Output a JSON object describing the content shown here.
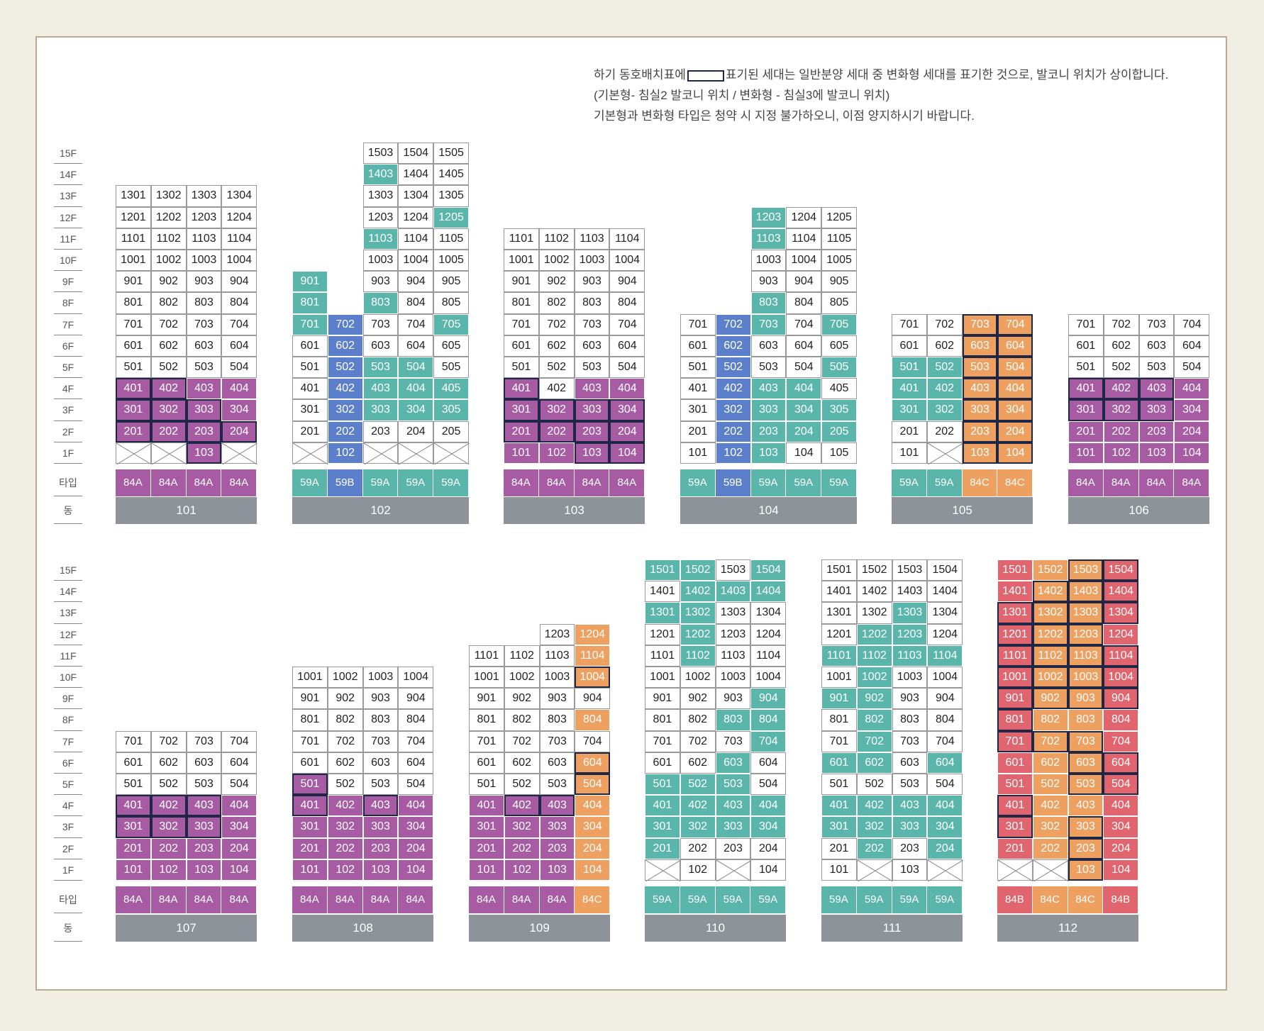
{
  "legend": {
    "line1_pre": "하기 동호배치표에",
    "line1_post": "표기된 세대는 일반분양 세대 중 변화형 세대를 표기한 것으로, 발코니 위치가 상이합니다.",
    "line2": "(기본형- 침실2 발코니 위치 / 변화형 - 침실3에 발코니 위치)",
    "line3": "기본형과 변화형 타입은 청약 시 지정 불가하오니, 이점 양지하시기 바랍니다."
  },
  "row_labels": {
    "type": "타입",
    "building": "동"
  },
  "colors": {
    "84A": "#a65ba3",
    "59A": "#5ab5aa",
    "59B": "#5b7fcb",
    "84C": "#eea061",
    "84B": "#e0656f",
    "building": "#8d9398",
    "variant_border": "#1f2747"
  },
  "buildings": [
    {
      "name": "101",
      "top_floor": 13,
      "units": 4,
      "types": [
        "84A",
        "84A",
        "84A",
        "84A"
      ],
      "colored": {
        "84A": [
          "201",
          "202",
          "203",
          "204",
          "301",
          "302",
          "303",
          "304",
          "401",
          "402",
          "403",
          "404",
          "103"
        ]
      },
      "variant": [
        "201",
        "202",
        "203",
        "204",
        "301",
        "302",
        "303",
        "401",
        "402",
        "103"
      ],
      "empty": [
        "101",
        "102",
        "104"
      ],
      "missing": []
    },
    {
      "name": "102",
      "top_floor": 15,
      "units": 5,
      "types": [
        "59A",
        "59B",
        "59A",
        "59A",
        "59A"
      ],
      "colored": {
        "59A": [
          "701",
          "801",
          "901",
          "503",
          "504",
          "403",
          "404",
          "405",
          "303",
          "304",
          "305",
          "705",
          "803",
          "1103",
          "1205",
          "1403"
        ],
        "59B": [
          "702",
          "602",
          "502",
          "402",
          "302",
          "202",
          "102"
        ]
      },
      "variant": [],
      "empty": [
        "101",
        "103",
        "104",
        "105"
      ],
      "missing": [
        "802",
        "902",
        "1001",
        "1002",
        "1101",
        "1102",
        "1201",
        "1202",
        "1301",
        "1302",
        "1401",
        "1402",
        "1501",
        "1502"
      ]
    },
    {
      "name": "103",
      "top_floor": 11,
      "units": 4,
      "types": [
        "84A",
        "84A",
        "84A",
        "84A"
      ],
      "colored": {
        "84A": [
          "101",
          "102",
          "103",
          "104",
          "201",
          "202",
          "203",
          "204",
          "301",
          "302",
          "303",
          "304",
          "401",
          "403",
          "404"
        ]
      },
      "variant": [
        "103",
        "104",
        "201",
        "202",
        "203",
        "204",
        "301",
        "302",
        "303",
        "304",
        "401"
      ],
      "empty": [],
      "missing": []
    },
    {
      "name": "104",
      "top_floor": 12,
      "units": 5,
      "types": [
        "59A",
        "59B",
        "59A",
        "59A",
        "59A"
      ],
      "colored": {
        "59A": [
          "103",
          "203",
          "204",
          "205",
          "303",
          "304",
          "305",
          "403",
          "404",
          "505",
          "703",
          "705",
          "803",
          "1103",
          "1203"
        ],
        "59B": [
          "102",
          "202",
          "302",
          "402",
          "502",
          "602",
          "702"
        ]
      },
      "variant": [],
      "empty": [],
      "missing": [
        "801",
        "802",
        "901",
        "902",
        "1001",
        "1002",
        "1101",
        "1102",
        "1201",
        "1202"
      ]
    },
    {
      "name": "105",
      "top_floor": 7,
      "units": 4,
      "types": [
        "59A",
        "59A",
        "84C",
        "84C"
      ],
      "colored": {
        "59A": [
          "301",
          "302",
          "401",
          "402",
          "501",
          "502"
        ],
        "84C": [
          "103",
          "104",
          "203",
          "204",
          "303",
          "304",
          "403",
          "404",
          "503",
          "504",
          "603",
          "604",
          "703",
          "704"
        ]
      },
      "variant": [
        "103",
        "104",
        "203",
        "204",
        "303",
        "304",
        "403",
        "404",
        "503",
        "504",
        "603",
        "604",
        "703",
        "704"
      ],
      "empty": [
        "102"
      ],
      "missing": []
    },
    {
      "name": "106",
      "top_floor": 7,
      "units": 4,
      "types": [
        "84A",
        "84A",
        "84A",
        "84A"
      ],
      "colored": {
        "84A": [
          "101",
          "102",
          "103",
          "104",
          "201",
          "202",
          "203",
          "204",
          "301",
          "302",
          "303",
          "304",
          "401",
          "402",
          "403",
          "404"
        ]
      },
      "variant": [
        "301",
        "302",
        "303",
        "401",
        "402",
        "403"
      ],
      "empty": [],
      "missing": []
    },
    {
      "name": "107",
      "top_floor": 7,
      "units": 4,
      "types": [
        "84A",
        "84A",
        "84A",
        "84A"
      ],
      "colored": {
        "84A": [
          "101",
          "102",
          "103",
          "104",
          "201",
          "202",
          "203",
          "204",
          "301",
          "302",
          "303",
          "304",
          "401",
          "402",
          "403",
          "404"
        ]
      },
      "variant": [
        "301",
        "302",
        "303",
        "401",
        "402",
        "403"
      ],
      "empty": [],
      "missing": []
    },
    {
      "name": "108",
      "top_floor": 10,
      "units": 4,
      "types": [
        "84A",
        "84A",
        "84A",
        "84A"
      ],
      "colored": {
        "84A": [
          "101",
          "102",
          "103",
          "104",
          "201",
          "202",
          "203",
          "204",
          "301",
          "302",
          "303",
          "304",
          "401",
          "402",
          "403",
          "404",
          "501"
        ]
      },
      "variant": [
        "401",
        "403",
        "501"
      ],
      "empty": [],
      "missing": []
    },
    {
      "name": "109",
      "top_floor": 12,
      "units": 4,
      "types": [
        "84A",
        "84A",
        "84A",
        "84C"
      ],
      "colored": {
        "84A": [
          "101",
          "102",
          "103",
          "201",
          "202",
          "203",
          "301",
          "302",
          "303",
          "401",
          "402",
          "403"
        ],
        "84C": [
          "104",
          "204",
          "304",
          "404",
          "504",
          "604",
          "804",
          "1004",
          "1104",
          "1204"
        ]
      },
      "variant": [
        "402",
        "403",
        "504",
        "604",
        "1004"
      ],
      "empty": [],
      "missing": [
        "1201",
        "1202"
      ]
    },
    {
      "name": "110",
      "top_floor": 15,
      "units": 4,
      "types": [
        "59A",
        "59A",
        "59A",
        "59A"
      ],
      "colored": {
        "59A": [
          "201",
          "301",
          "302",
          "303",
          "304",
          "401",
          "402",
          "403",
          "404",
          "501",
          "502",
          "503",
          "603",
          "704",
          "803",
          "804",
          "904",
          "1102",
          "1202",
          "1301",
          "1302",
          "1402",
          "1403",
          "1404",
          "1501",
          "1502",
          "1504"
        ]
      },
      "variant": [],
      "empty": [
        "101",
        "103"
      ],
      "missing": []
    },
    {
      "name": "111",
      "top_floor": 15,
      "units": 4,
      "types": [
        "59A",
        "59A",
        "59A",
        "59A"
      ],
      "colored": {
        "59A": [
          "202",
          "204",
          "301",
          "302",
          "303",
          "304",
          "401",
          "402",
          "403",
          "404",
          "601",
          "602",
          "604",
          "702",
          "802",
          "901",
          "902",
          "1002",
          "1101",
          "1102",
          "1103",
          "1104",
          "1202",
          "1203",
          "1303"
        ]
      },
      "variant": [],
      "empty": [
        "102",
        "104"
      ],
      "missing": []
    },
    {
      "name": "112",
      "top_floor": 15,
      "units": 4,
      "types": [
        "84B",
        "84C",
        "84C",
        "84B"
      ],
      "colored": {
        "84B": [
          "201",
          "204",
          "301",
          "304",
          "401",
          "404",
          "501",
          "504",
          "601",
          "604",
          "701",
          "704",
          "801",
          "804",
          "901",
          "904",
          "1001",
          "1004",
          "1101",
          "1104",
          "1201",
          "1204",
          "1301",
          "1304",
          "1401",
          "1404",
          "1501",
          "1504",
          "104"
        ],
        "84C": [
          "202",
          "203",
          "302",
          "303",
          "402",
          "403",
          "502",
          "503",
          "602",
          "603",
          "702",
          "703",
          "802",
          "803",
          "902",
          "903",
          "1002",
          "1003",
          "1102",
          "1103",
          "1202",
          "1203",
          "1302",
          "1303",
          "1402",
          "1403",
          "1502",
          "1503",
          "103"
        ]
      },
      "variant": [
        "103",
        "203",
        "301",
        "303",
        "401",
        "503",
        "504",
        "603",
        "604",
        "701",
        "702",
        "703",
        "801",
        "901",
        "902",
        "903",
        "904",
        "1001",
        "1002",
        "1003",
        "1004",
        "1101",
        "1102",
        "1103",
        "1104",
        "1201",
        "1202",
        "1203",
        "1301",
        "1302",
        "1303",
        "1304",
        "1402",
        "1403",
        "1404",
        "1503",
        "1504"
      ],
      "empty": [
        "101",
        "102"
      ],
      "missing": []
    }
  ]
}
